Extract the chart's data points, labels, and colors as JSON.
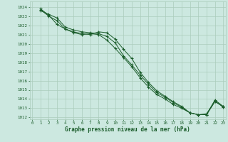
{
  "background_color": "#cce8e0",
  "grid_color": "#aaccbb",
  "line_color": "#1a5c2a",
  "xlabel": "Graphe pression niveau de la mer (hPa)",
  "xlim": [
    -0.3,
    23.3
  ],
  "ylim": [
    1011.8,
    1024.6
  ],
  "yticks": [
    1012,
    1013,
    1014,
    1015,
    1016,
    1017,
    1018,
    1019,
    1020,
    1021,
    1022,
    1023,
    1024
  ],
  "xticks": [
    0,
    1,
    2,
    3,
    4,
    5,
    6,
    7,
    8,
    9,
    10,
    11,
    12,
    13,
    14,
    15,
    16,
    17,
    18,
    19,
    20,
    21,
    22,
    23
  ],
  "series": [
    [
      1023.7,
      1023.0,
      1022.5,
      1021.6,
      1021.2,
      1021.0,
      1021.1,
      1021.0,
      1020.4,
      1019.5,
      1018.5,
      1017.5,
      1016.3,
      1015.3,
      1014.5,
      1014.0,
      1013.4,
      1013.0,
      1012.5,
      1012.3,
      1012.3,
      1013.7,
      1013.2
    ],
    [
      1023.6,
      1023.2,
      1022.8,
      1021.8,
      1021.5,
      1021.3,
      1021.2,
      1021.1,
      1020.8,
      1020.1,
      1018.7,
      1017.7,
      1016.6,
      1015.6,
      1014.7,
      1014.2,
      1013.6,
      1013.1,
      1012.5,
      1012.3,
      1012.4,
      1013.8,
      1013.1
    ],
    [
      1023.8,
      1023.1,
      1022.1,
      1021.6,
      1021.3,
      1021.1,
      1021.0,
      1021.3,
      1021.2,
      1020.5,
      1019.4,
      1018.4,
      1016.9,
      1015.8,
      1014.9,
      1014.3,
      1013.7,
      1013.2,
      1012.5,
      1012.3,
      1012.3,
      1013.9,
      1013.2
    ]
  ]
}
